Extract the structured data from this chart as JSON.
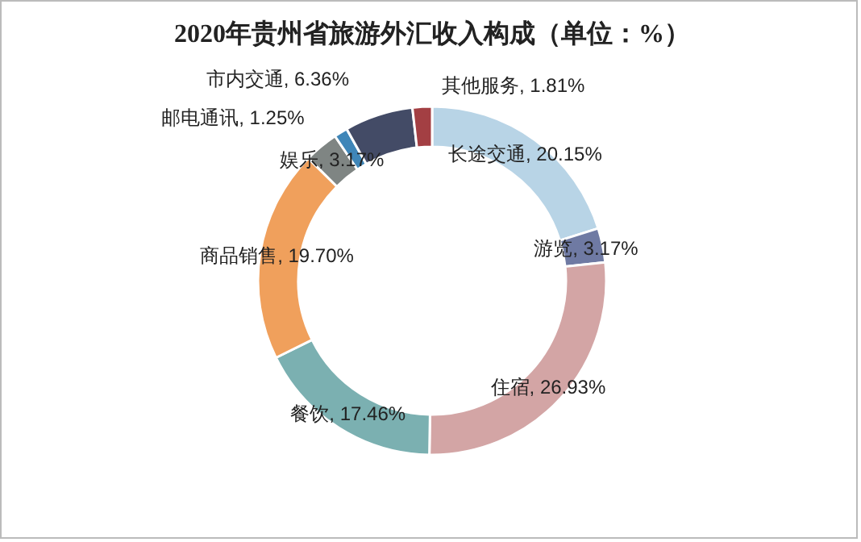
{
  "chart_data": {
    "type": "donut",
    "title": "2020年贵州省旅游外汇收入构成（单位：%）",
    "categories": [
      "长途交通",
      "游览",
      "住宿",
      "餐饮",
      "商品销售",
      "娱乐",
      "邮电通讯",
      "市内交通",
      "其他服务"
    ],
    "values": [
      20.15,
      3.17,
      26.93,
      17.46,
      19.7,
      3.17,
      1.25,
      6.36,
      1.81
    ],
    "value_labels": [
      "20.15%",
      "3.17%",
      "26.93%",
      "17.46%",
      "19.70%",
      "3.17%",
      "1.25%",
      "6.36%",
      "1.81%"
    ],
    "colors": [
      "#b8d4e6",
      "#6f7aa3",
      "#d3a5a5",
      "#7bb0b1",
      "#f0a05c",
      "#7f8583",
      "#3f86b8",
      "#434b66",
      "#a33f43"
    ]
  }
}
